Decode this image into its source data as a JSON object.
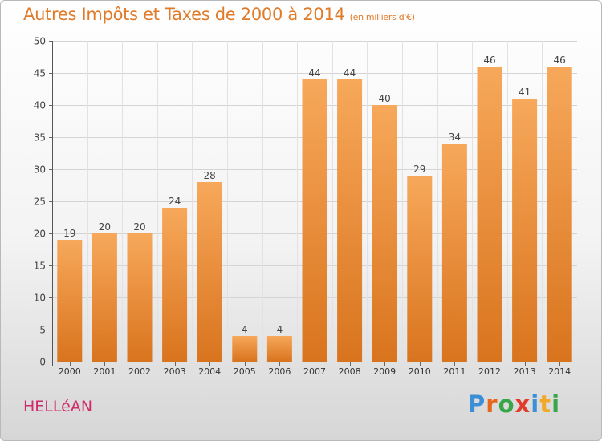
{
  "title": {
    "main": "Autres Impôts et Taxes de 2000 à 2014",
    "unit": "(en milliers d'€)"
  },
  "commune": "HELLéAN",
  "logo": {
    "text": "Proxiti",
    "letters": [
      {
        "ch": "P",
        "color": "#3c8fd6"
      },
      {
        "ch": "r",
        "color": "#e8661c"
      },
      {
        "ch": "o",
        "color": "#3aa64a"
      },
      {
        "ch": "x",
        "color": "#e23a2b"
      },
      {
        "ch": "i",
        "color": "#3c8fd6"
      },
      {
        "ch": "t",
        "color": "#f0a92a"
      },
      {
        "ch": "i",
        "color": "#3aa64a"
      }
    ]
  },
  "chart_data": {
    "type": "bar",
    "categories": [
      "2000",
      "2001",
      "2002",
      "2003",
      "2004",
      "2005",
      "2006",
      "2007",
      "2008",
      "2009",
      "2010",
      "2011",
      "2012",
      "2013",
      "2014"
    ],
    "values": [
      19,
      20,
      20,
      24,
      28,
      4,
      4,
      44,
      44,
      40,
      29,
      34,
      46,
      41,
      46
    ],
    "ylim": [
      0,
      50
    ],
    "yticks": [
      0,
      5,
      10,
      15,
      20,
      25,
      30,
      35,
      40,
      45,
      50
    ],
    "grid": true,
    "bar_color_top": "#f7a85a",
    "bar_color_bottom": "#d9741e",
    "data_labels": true
  }
}
